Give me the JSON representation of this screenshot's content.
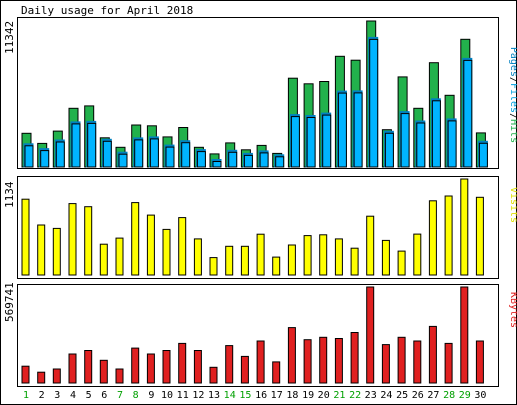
{
  "colors": {
    "hits": "#22b14c",
    "files": "#00b4ff",
    "pages": "#0080c0",
    "visits": "#ffff00",
    "kbytes": "#e02020",
    "weekend_label": "#00a000",
    "weekday_label": "#000000",
    "frame": "#000000"
  },
  "chart_data": [
    {
      "type": "bar",
      "title": "Daily usage for April 2018",
      "series": [
        {
          "name": "Hits",
          "values": [
            2620,
            1830,
            2790,
            4560,
            4750,
            2270,
            1530,
            3260,
            3200,
            2340,
            3070,
            1530,
            1020,
            1870,
            1340,
            1680,
            1060,
            6900,
            6460,
            6640,
            8600,
            8300,
            11342,
            2900,
            7000,
            4560,
            8100,
            5570,
            9920,
            2650
          ]
        },
        {
          "name": "Files",
          "values": [
            1800,
            1430,
            2100,
            3500,
            3540,
            2150,
            1150,
            2260,
            2340,
            1700,
            2040,
            1350,
            580,
            1300,
            1060,
            1250,
            950,
            4070,
            4000,
            4190,
            5900,
            5910,
            10070,
            2770,
            4300,
            3570,
            5300,
            3740,
            8440,
            2000
          ]
        },
        {
          "name": "Pages",
          "values": [
            1700,
            1400,
            2000,
            3300,
            3400,
            2000,
            1100,
            2100,
            2200,
            1600,
            1900,
            1250,
            550,
            1250,
            1000,
            1200,
            900,
            3900,
            3800,
            4000,
            5700,
            5700,
            9800,
            2600,
            4100,
            3400,
            5100,
            3600,
            8200,
            1900
          ]
        }
      ],
      "ylabel": "Pages/Files/Hits",
      "ymax_label": "11342",
      "ymax": 11342
    },
    {
      "type": "bar",
      "series": [
        {
          "name": "Visits",
          "values": [
            895,
            591,
            551,
            843,
            807,
            364,
            436,
            855,
            707,
            539,
            678,
            427,
            205,
            339,
            339,
            482,
            212,
            354,
            465,
            475,
            426,
            317,
            694,
            409,
            282,
            483,
            876,
            933,
            1134,
            918
          ]
        }
      ],
      "ylabel": "Visits",
      "ymax_label": "1134",
      "ymax": 1134
    },
    {
      "type": "bar",
      "series": [
        {
          "name": "KBytes",
          "values": [
            100000,
            64000,
            83000,
            172000,
            193000,
            135000,
            83000,
            207000,
            172000,
            193000,
            235000,
            193000,
            93000,
            222000,
            158000,
            249000,
            125000,
            329000,
            257000,
            271000,
            264000,
            300000,
            569741,
            228000,
            271000,
            249000,
            336000,
            235000,
            569741,
            249000
          ]
        }
      ],
      "ylabel": "KBytes",
      "ymax_label": "569741",
      "ymax": 569741
    }
  ],
  "x_axis": {
    "days": [
      "1",
      "2",
      "3",
      "4",
      "5",
      "6",
      "7",
      "8",
      "9",
      "10",
      "11",
      "12",
      "13",
      "14",
      "15",
      "16",
      "17",
      "18",
      "19",
      "20",
      "21",
      "22",
      "23",
      "24",
      "25",
      "26",
      "27",
      "28",
      "29",
      "30"
    ],
    "weekend": [
      true,
      false,
      false,
      false,
      false,
      false,
      true,
      true,
      false,
      false,
      false,
      false,
      false,
      true,
      true,
      false,
      false,
      false,
      false,
      false,
      true,
      true,
      false,
      false,
      false,
      false,
      false,
      true,
      true,
      false
    ]
  }
}
